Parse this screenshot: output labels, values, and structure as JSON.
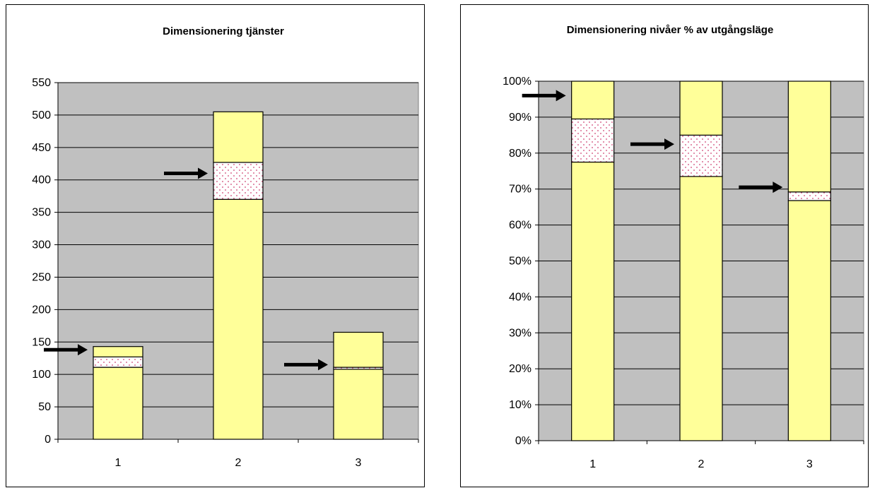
{
  "chart_data": [
    {
      "type": "bar",
      "stacked": true,
      "title": "Dimensionering tjänster",
      "categories": [
        "1",
        "2",
        "3"
      ],
      "ylim": [
        0,
        550
      ],
      "ytick_step": 50,
      "yticks": [
        "0",
        "50",
        "100",
        "150",
        "200",
        "250",
        "300",
        "350",
        "400",
        "450",
        "500",
        "550"
      ],
      "grid": true,
      "plot_background": "#c0c0c0",
      "series": [
        {
          "values": [
            111,
            370,
            108
          ],
          "color": "#ffff99",
          "pattern": "solid"
        },
        {
          "values": [
            16,
            57,
            3
          ],
          "color": "#ffffff",
          "pattern": "dotted-pink"
        },
        {
          "values": [
            16,
            78,
            54
          ],
          "color": "#ffff99",
          "pattern": "solid"
        }
      ],
      "arrows": [
        {
          "category": 0,
          "y": 138
        },
        {
          "category": 1,
          "y": 410
        },
        {
          "category": 2,
          "y": 115
        }
      ]
    },
    {
      "type": "bar",
      "stacked": true,
      "title": "Dimensionering nivåer % av utgångsläge",
      "categories": [
        "1",
        "2",
        "3"
      ],
      "ylim": [
        0,
        1
      ],
      "ytick_step": 0.1,
      "yticks": [
        "0%",
        "10%",
        "20%",
        "30%",
        "40%",
        "50%",
        "60%",
        "70%",
        "80%",
        "90%",
        "100%"
      ],
      "grid": true,
      "plot_background": "#c0c0c0",
      "series": [
        {
          "values": [
            0.775,
            0.735,
            0.668
          ],
          "color": "#ffff99",
          "pattern": "solid"
        },
        {
          "values": [
            0.12,
            0.115,
            0.024
          ],
          "color": "#ffffff",
          "pattern": "dotted-pink"
        },
        {
          "values": [
            0.105,
            0.15,
            0.308
          ],
          "color": "#ffff99",
          "pattern": "solid"
        }
      ],
      "arrows": [
        {
          "category": 0,
          "y": 0.96
        },
        {
          "category": 1,
          "y": 0.825
        },
        {
          "category": 2,
          "y": 0.705
        }
      ]
    }
  ]
}
